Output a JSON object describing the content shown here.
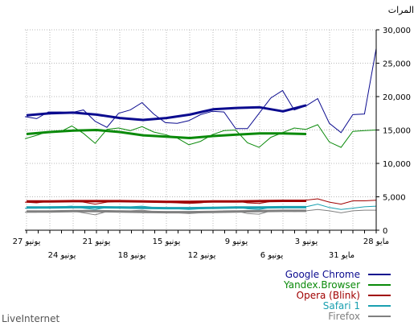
{
  "chart_data": {
    "type": "line",
    "ylabel": "المرات",
    "footer": "LiveInternet",
    "ylim": [
      0,
      30000
    ],
    "y_ticks": [
      "0",
      "5,000",
      "10,000",
      "15,000",
      "20,000",
      "25,000",
      "30,000"
    ],
    "x_labels_top": [
      "28 مايو",
      "3 يونيو",
      "9 يونيو",
      "15 يونيو",
      "21 يونيو",
      "27 يونيو"
    ],
    "x_labels_bottom": [
      "31 مايو",
      "6 يونيو",
      "12 يونيو",
      "18 يونيو",
      "24 يونيو"
    ],
    "grid": true,
    "legend_position": "bottom-right",
    "series": [
      {
        "name": "Google Chrome",
        "color": "#0b0b8f",
        "daily": [
          27200,
          17400,
          17300,
          14600,
          16000,
          19700,
          18600,
          18000,
          20900,
          19800,
          17500,
          15200,
          15200,
          17700,
          17800,
          17300,
          16400,
          16000,
          16100,
          17400,
          19100,
          18000,
          17500,
          15400,
          16300,
          18000,
          17600,
          17700,
          17700,
          16700,
          17000
        ],
        "trend": [
          18700,
          17800,
          18400,
          18300,
          18100,
          17300,
          16800,
          16500,
          16800,
          17300,
          17600,
          17500,
          17200
        ]
      },
      {
        "name": "Yandex.Browser",
        "color": "#0a8a0a",
        "daily": [
          15000,
          14900,
          14800,
          12400,
          13200,
          15800,
          15100,
          15300,
          14600,
          13900,
          12400,
          13100,
          15000,
          14900,
          14300,
          13300,
          12800,
          13800,
          14300,
          14700,
          15500,
          14900,
          15300,
          15100,
          13000,
          14500,
          15600,
          14700,
          14800,
          14200,
          13700
        ],
        "trend": [
          14400,
          14500,
          14500,
          14300,
          14100,
          13800,
          14000,
          14200,
          14700,
          15000,
          14900,
          14700,
          14400
        ]
      },
      {
        "name": "Opera (Blink)",
        "color": "#a00000",
        "daily": [
          4500,
          4400,
          4400,
          3900,
          4200,
          4700,
          4500,
          4300,
          4400,
          4300,
          4000,
          4100,
          4400,
          4300,
          4300,
          4100,
          4000,
          4100,
          4200,
          4300,
          4400,
          4300,
          4300,
          4200,
          3900,
          4200,
          4400,
          4300,
          4300,
          4100,
          4200
        ],
        "trend": [
          4400,
          4400,
          4350,
          4300,
          4300,
          4250,
          4250,
          4300,
          4350,
          4350,
          4350,
          4300,
          4300
        ]
      },
      {
        "name": "Safari 1",
        "color": "#1aa0b0",
        "daily": [
          3600,
          3500,
          3300,
          3100,
          3400,
          3900,
          3500,
          3400,
          3500,
          3400,
          3100,
          3200,
          3500,
          3400,
          3300,
          3200,
          3100,
          3200,
          3300,
          3400,
          3600,
          3500,
          3500,
          3400,
          3100,
          3300,
          3600,
          3500,
          3500,
          3300,
          3300
        ],
        "trend": [
          3450,
          3450,
          3400,
          3400,
          3350,
          3300,
          3300,
          3350,
          3400,
          3450,
          3450,
          3400,
          3400
        ]
      },
      {
        "name": "Firefox",
        "color": "#808080",
        "daily": [
          3000,
          3000,
          2900,
          2600,
          2900,
          3100,
          2900,
          2800,
          3000,
          2900,
          2400,
          2500,
          2900,
          2900,
          2800,
          2600,
          2500,
          2600,
          2700,
          2800,
          3000,
          2900,
          2900,
          2800,
          2300,
          2600,
          2900,
          2800,
          2900,
          2700,
          2700
        ],
        "trend": [
          2900,
          2900,
          2850,
          2800,
          2750,
          2700,
          2700,
          2750,
          2800,
          2850,
          2850,
          2800,
          2800
        ]
      }
    ]
  }
}
